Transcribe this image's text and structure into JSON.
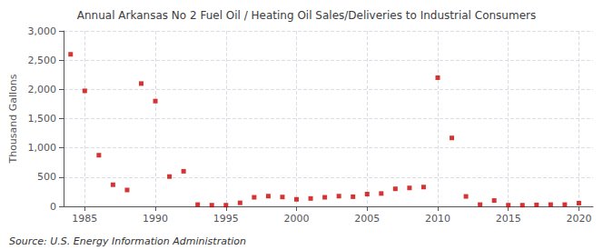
{
  "chart_data": {
    "type": "scatter",
    "title": "Annual Arkansas No 2 Fuel Oil / Heating Oil Sales/Deliveries to Industrial Consumers",
    "ylabel": "Thousand Gallons",
    "annotations": [
      "Source: U.S. Energy Information Administration"
    ],
    "x": [
      1984,
      1985,
      1986,
      1987,
      1988,
      1989,
      1990,
      1991,
      1992,
      1993,
      1994,
      1995,
      1996,
      1997,
      1998,
      1999,
      2000,
      2001,
      2002,
      2003,
      2004,
      2005,
      2006,
      2007,
      2008,
      2009,
      2010,
      2011,
      2012,
      2013,
      2014,
      2015,
      2016,
      2017,
      2018,
      2019,
      2020
    ],
    "values": [
      2600,
      1975,
      875,
      370,
      280,
      2100,
      1800,
      510,
      600,
      30,
      20,
      20,
      60,
      155,
      175,
      160,
      120,
      135,
      155,
      175,
      165,
      210,
      220,
      300,
      315,
      330,
      2200,
      1170,
      170,
      30,
      100,
      20,
      20,
      25,
      30,
      30,
      55
    ],
    "color": "#cc0000",
    "marker": "square",
    "xlim": [
      1983.5,
      2021
    ],
    "xticks": [
      1985,
      1990,
      1995,
      2000,
      2005,
      2010,
      2015,
      2020
    ],
    "ylim": [
      0,
      3000
    ],
    "yticks": [
      0,
      500,
      {
        "value": 1000,
        "label": "1,000"
      },
      {
        "value": 1500,
        "label": "1,500"
      },
      {
        "value": 2000,
        "label": "2,000"
      },
      {
        "value": 2500,
        "label": "2,500"
      },
      {
        "value": 3000,
        "label": "3,000"
      }
    ],
    "grid": true
  }
}
